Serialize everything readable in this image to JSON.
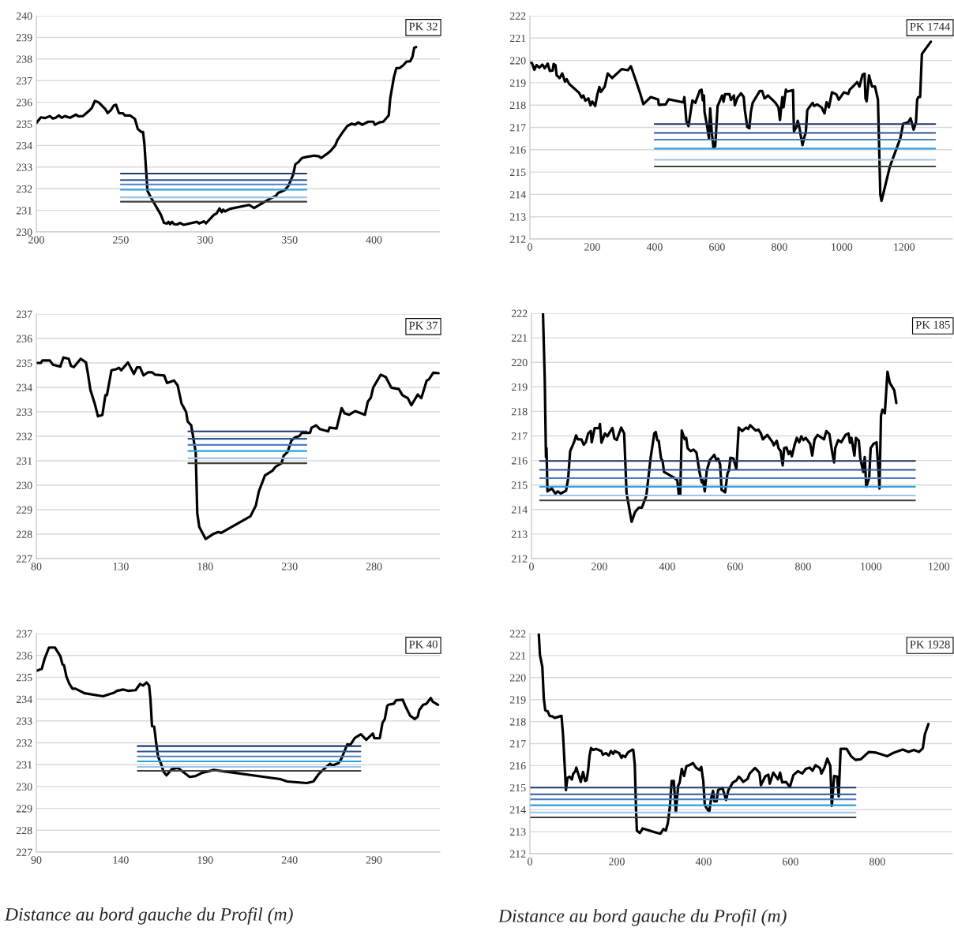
{
  "chart_data": [
    {
      "type": "line",
      "annotations": [
        "PK 32"
      ],
      "xlim": [
        200,
        439
      ],
      "xticks": [
        200,
        250,
        300,
        350,
        400
      ],
      "ylim": [
        230,
        240
      ],
      "yticks": [
        230,
        231,
        232,
        233,
        234,
        235,
        236,
        237,
        238,
        239,
        240
      ],
      "grid": "y",
      "series": [
        {
          "color": "#000000",
          "x": [
            200,
            202.7,
            205.3,
            208,
            209.8,
            211.5,
            213.3,
            215,
            216.9,
            219.9,
            223.5,
            224.9,
            227.6,
            231.2,
            232.9,
            234.7,
            237,
            240.9,
            242.2,
            244.1,
            245.9,
            247.2,
            248.9,
            251.3,
            252.5,
            255.5,
            258.4,
            260.1,
            262.3,
            263.2,
            264,
            265.8,
            267.6,
            273.8,
            275.6,
            277.4,
            278.3,
            279.2,
            280.4,
            281.5,
            283.6,
            285,
            287.2,
            295.2,
            296.4,
            299.3,
            300.5,
            305,
            306.8,
            308.5,
            309.8,
            310.7,
            311.7,
            314.8,
            326,
            329,
            338.8,
            341.9,
            343.2,
            347.3,
            349.4,
            352.1,
            353.4,
            355.2,
            357.3,
            360.1,
            364.6,
            367.3,
            368.7,
            372.6,
            374.4,
            377,
            378.3,
            381.5,
            384.2,
            386.8,
            388.6,
            390.7,
            393,
            396.6,
            399.6,
            400.5,
            403.2,
            405.5,
            408.7,
            409.6,
            411.7,
            413.2,
            415.3,
            417.4,
            419.2,
            421.5,
            422.8,
            423.8,
            424.9
          ],
          "values": [
            235.04,
            235.3,
            235.27,
            235.36,
            235.25,
            235.28,
            235.39,
            235.28,
            235.36,
            235.28,
            235.43,
            235.35,
            235.36,
            235.6,
            235.74,
            236.06,
            235.99,
            235.68,
            235.5,
            235.63,
            235.85,
            235.88,
            235.5,
            235.49,
            235.39,
            235.39,
            235.23,
            234.76,
            234.62,
            234.62,
            234.07,
            231.91,
            231.63,
            230.79,
            230.42,
            230.39,
            230.47,
            230.36,
            230.47,
            230.36,
            230.35,
            230.42,
            230.33,
            230.47,
            230.39,
            230.49,
            230.4,
            230.78,
            230.86,
            231.09,
            230.92,
            231.03,
            230.95,
            231.07,
            231.25,
            231.11,
            231.56,
            231.67,
            231.81,
            231.94,
            232.15,
            232.65,
            233.13,
            233.23,
            233.42,
            233.47,
            233.53,
            233.5,
            233.42,
            233.64,
            233.76,
            234,
            234.25,
            234.62,
            234.9,
            235.01,
            234.96,
            235.07,
            234.96,
            235.1,
            235.1,
            234.96,
            235.07,
            235.1,
            235.39,
            236.18,
            237.13,
            237.58,
            237.59,
            237.72,
            237.88,
            237.9,
            238.11,
            238.52,
            238.55
          ]
        },
        {
          "color": "#203864",
          "x": [
            250,
            360
          ],
          "values": [
            232.7,
            232.7
          ]
        },
        {
          "color": "#2f5597",
          "x": [
            250,
            360
          ],
          "values": [
            232.4,
            232.4
          ]
        },
        {
          "color": "#4f7fc0",
          "x": [
            250,
            360
          ],
          "values": [
            232.2,
            232.2
          ]
        },
        {
          "color": "#2e9ee0",
          "x": [
            250,
            360
          ],
          "values": [
            231.95,
            231.95
          ]
        },
        {
          "color": "#9dc3e6",
          "x": [
            250,
            360
          ],
          "values": [
            231.6,
            231.6
          ]
        },
        {
          "color": "#404040",
          "x": [
            250,
            360
          ],
          "values": [
            231.4,
            231.4
          ]
        }
      ]
    },
    {
      "type": "line",
      "annotations": [
        "PK 1744"
      ],
      "xlim": [
        0,
        1355
      ],
      "xticks": [
        0,
        200,
        400,
        600,
        800,
        1000,
        1200
      ],
      "ylim": [
        212,
        222
      ],
      "yticks": [
        212,
        213,
        214,
        215,
        216,
        217,
        218,
        219,
        220,
        221,
        222
      ],
      "grid": "y",
      "series": [
        {
          "color": "#000000",
          "x": [
            0,
            6.7,
            14.3,
            21,
            30.5,
            40,
            47.6,
            57,
            63.8,
            73,
            76,
            81.9,
            85.7,
            95.2,
            103.8,
            112.4,
            118,
            125.7,
            157,
            165.7,
            171.4,
            178.1,
            187.6,
            194.3,
            200,
            209.5,
            216.2,
            222.9,
            227.6,
            240,
            249.5,
            263.8,
            294.3,
            314.3,
            323.8,
            337.1,
            354.3,
            363.8,
            387.6,
            411.4,
            413.3,
            435.2,
            444.8,
            492.4,
            495.2,
            501.9,
            508.6,
            521,
            530.5,
            544.8,
            550.5,
            554.3,
            558.1,
            560,
            568.6,
            574.3,
            578.1,
            582.9,
            588.6,
            594.3,
            601.9,
            616.2,
            621,
            625.7,
            640,
            644.8,
            654.3,
            657.1,
            665.7,
            677.1,
            685.7,
            689.5,
            697.1,
            703.8,
            708.6,
            714.3,
            737.1,
            744.8,
            752.4,
            763.8,
            787.6,
            797.1,
            801.9,
            809.5,
            813.3,
            820.9,
            825.7,
            832.4,
            843.8,
            846.7,
            854.3,
            859,
            863.8,
            868.6,
            874.3,
            880,
            884.8,
            889.5,
            899,
            906.7,
            911.4,
            921,
            935.2,
            944.8,
            951.4,
            959,
            968.6,
            982.9,
            990.5,
            1006.7,
            1020.9,
            1025.7,
            1040,
            1049.5,
            1057.1,
            1066.7,
            1073.3,
            1076.2,
            1080,
            1087.6,
            1097.1,
            1106.7,
            1116.2,
            1123.8,
            1127.6,
            1154.3,
            1187.6,
            1197.1,
            1213.3,
            1220.9,
            1230.5,
            1238.1,
            1241.9,
            1245.7,
            1251.4,
            1257.1,
            1285.7
          ],
          "values": [
            219.91,
            219.88,
            219.58,
            219.79,
            219.68,
            219.81,
            219.65,
            219.86,
            219.53,
            219.55,
            219.84,
            219.79,
            219.34,
            219.21,
            219.42,
            219.05,
            219.16,
            218.95,
            218.56,
            218.34,
            218.43,
            218.2,
            218.3,
            217.99,
            218.16,
            217.96,
            218.47,
            218.81,
            218.59,
            218.83,
            219.42,
            219.21,
            219.61,
            219.56,
            219.74,
            219.21,
            218.49,
            218.04,
            218.36,
            218.25,
            218.01,
            218.03,
            218.26,
            218.12,
            218.36,
            217.27,
            217.06,
            218.21,
            218.1,
            218.65,
            218.69,
            218.21,
            218.43,
            217.7,
            217.03,
            216.5,
            217.85,
            216.83,
            216.1,
            216.16,
            217.95,
            218.43,
            218.15,
            218.49,
            218.49,
            218.23,
            218.43,
            217.99,
            218.33,
            218.53,
            218.36,
            217.76,
            217.03,
            216.96,
            217.69,
            218.1,
            218.63,
            218.63,
            218.3,
            218.43,
            218.1,
            217.9,
            217.33,
            218.36,
            217.9,
            218.69,
            218.61,
            218.63,
            218.67,
            216.83,
            217,
            217.3,
            217.03,
            216.63,
            216.21,
            216.57,
            216.77,
            217.77,
            217.96,
            218.1,
            217.96,
            218.03,
            217.9,
            217.63,
            218.13,
            217.9,
            218.57,
            218.48,
            218.24,
            218.57,
            218.5,
            218.69,
            218.89,
            219.03,
            218.83,
            219.36,
            219.41,
            218.3,
            218.17,
            219.33,
            218.83,
            218.83,
            218.24,
            213.98,
            213.71,
            215.24,
            216.5,
            217.17,
            217.23,
            217.41,
            216.9,
            217.23,
            218.24,
            218.36,
            218.36,
            220.29,
            220.84
          ]
        },
        {
          "color": "#203864",
          "x": [
            400,
            1300
          ],
          "values": [
            217.15,
            217.15
          ]
        },
        {
          "color": "#2f5597",
          "x": [
            400,
            1300
          ],
          "values": [
            216.75,
            216.75
          ]
        },
        {
          "color": "#4f7fc0",
          "x": [
            400,
            1300
          ],
          "values": [
            216.45,
            216.45
          ]
        },
        {
          "color": "#2e9ee0",
          "x": [
            400,
            1300
          ],
          "values": [
            216.05,
            216.05
          ]
        },
        {
          "color": "#9dc3e6",
          "x": [
            400,
            1300
          ],
          "values": [
            215.55,
            215.55
          ]
        },
        {
          "color": "#404040",
          "x": [
            400,
            1300
          ],
          "values": [
            215.25,
            215.25
          ]
        }
      ]
    },
    {
      "type": "line",
      "annotations": [
        "PK 37"
      ],
      "xlim": [
        80,
        319
      ],
      "xticks": [
        80,
        130,
        180,
        230,
        280
      ],
      "ylim": [
        227,
        237
      ],
      "yticks": [
        227,
        228,
        229,
        230,
        231,
        232,
        233,
        234,
        235,
        236,
        237
      ],
      "grid": "y",
      "series": [
        {
          "color": "#000000",
          "x": [
            80,
            82.7,
            83.6,
            88,
            89.8,
            94.2,
            96,
            99.2,
            100.5,
            102.2,
            106.3,
            109.4,
            110.6,
            112,
            114.7,
            116.5,
            119.1,
            120.9,
            121.8,
            124.5,
            127.2,
            128.9,
            130.3,
            134.3,
            137.8,
            139.6,
            141.4,
            143.5,
            146.2,
            148.5,
            150.3,
            155.7,
            157.4,
            161.6,
            163.7,
            166,
            168.7,
            169.6,
            171.7,
            173.1,
            174.4,
            175.3,
            176.5,
            180.3,
            185.1,
            187.8,
            189.5,
            206.8,
            210,
            211.8,
            215.4,
            219.8,
            221.6,
            225.2,
            226.5,
            228.8,
            231.1,
            233.2,
            235.9,
            237.2,
            242.1,
            243,
            245.7,
            247.8,
            252.8,
            253.7,
            257.8,
            260.8,
            262.6,
            265.3,
            268.8,
            274.6,
            276.3,
            278.1,
            279.5,
            284,
            287,
            290.2,
            294.7,
            296.8,
            300,
            302.1,
            305.9,
            308,
            311.2,
            312.5,
            315.1,
            318.2
          ],
          "values": [
            235,
            235,
            235.1,
            235.1,
            234.93,
            234.85,
            235.22,
            235.17,
            234.88,
            234.83,
            235.17,
            235.02,
            234.55,
            233.9,
            233.31,
            232.82,
            232.87,
            233.68,
            233.68,
            234.7,
            234.74,
            234.8,
            234.7,
            235.02,
            234.55,
            234.82,
            234.82,
            234.49,
            234.62,
            234.62,
            234.52,
            234.49,
            234.18,
            234.28,
            234.08,
            233.34,
            233,
            232.61,
            232.45,
            231.89,
            231.33,
            228.86,
            228.3,
            227.8,
            228.02,
            228.09,
            228.05,
            228.73,
            229.17,
            229.75,
            230.4,
            230.59,
            230.75,
            230.9,
            231.21,
            231.36,
            231.83,
            231.95,
            232.02,
            232.14,
            232.14,
            232.35,
            232.45,
            232.3,
            232.2,
            232.36,
            232.32,
            233.15,
            232.94,
            232.88,
            233.03,
            232.88,
            233.41,
            233.58,
            233.99,
            234.52,
            234.42,
            233.99,
            233.93,
            233.68,
            233.56,
            233.27,
            233.71,
            233.56,
            234.28,
            234.33,
            234.6,
            234.58
          ]
        },
        {
          "color": "#203864",
          "x": [
            170,
            240
          ],
          "values": [
            232.2,
            232.2
          ]
        },
        {
          "color": "#2f5597",
          "x": [
            170,
            240
          ],
          "values": [
            231.9,
            231.9
          ]
        },
        {
          "color": "#4f7fc0",
          "x": [
            170,
            240
          ],
          "values": [
            231.65,
            231.65
          ]
        },
        {
          "color": "#2e9ee0",
          "x": [
            170,
            240
          ],
          "values": [
            231.4,
            231.4
          ]
        },
        {
          "color": "#9dc3e6",
          "x": [
            170,
            240
          ],
          "values": [
            231.1,
            231.1
          ]
        },
        {
          "color": "#404040",
          "x": [
            170,
            240
          ],
          "values": [
            230.9,
            230.9
          ]
        }
      ]
    },
    {
      "type": "line",
      "annotations": [
        "PK 185"
      ],
      "xlim": [
        0,
        1240
      ],
      "xticks": [
        0,
        200,
        400,
        600,
        800,
        1000,
        1200
      ],
      "ylim": [
        212,
        222
      ],
      "yticks": [
        212,
        213,
        214,
        215,
        216,
        217,
        218,
        219,
        220,
        221,
        222
      ],
      "grid": "y",
      "series": [
        {
          "color": "#000000",
          "x": [
            33.9,
            39.1,
            42.6,
            44.3,
            47,
            60,
            70.4,
            77.4,
            86.1,
            101.7,
            107.8,
            113.9,
            125.2,
            131.3,
            136.5,
            147,
            153.9,
            160,
            167,
            174.8,
            177.4,
            186.1,
            199.1,
            201.7,
            206.1,
            216.5,
            223.5,
            229.6,
            238.3,
            244.3,
            251.3,
            264.3,
            273,
            280,
            294.8,
            305.2,
            316.5,
            325.2,
            338.3,
            351.3,
            361.7,
            366.1,
            370.4,
            374.8,
            381.7,
            386.1,
            390.4,
            420.9,
            429.6,
            433.9,
            438.3,
            442.6,
            451.3,
            455.7,
            460,
            468.7,
            477.4,
            486.1,
            494.8,
            501.7,
            505.2,
            510.4,
            516.5,
            525.2,
            538.3,
            545.2,
            549.6,
            555.7,
            560,
            570.4,
            577.4,
            581.7,
            586.1,
            594.8,
            603.5,
            610.4,
            620.9,
            632.2,
            638.3,
            644.3,
            660,
            668.7,
            675.7,
            681.7,
            694.8,
            710.4,
            713.9,
            722.6,
            727.8,
            733.9,
            740,
            744.3,
            751.3,
            757.4,
            762.6,
            767,
            774.8,
            781.7,
            788.7,
            794.8,
            800.9,
            807.8,
            820.9,
            827,
            834,
            842.6,
            861.7,
            868.7,
            877.4,
            886.1,
            891.3,
            894.8,
            903.5,
            912.2,
            925.2,
            933.9,
            938.3,
            942.6,
            951.3,
            955.7,
            964.3,
            968.7,
            977.4,
            981.7,
            986.1,
            994.8,
            999.1,
            1007.8,
            1016.5,
            1023.5,
            1025.2,
            1029.6,
            1033.9,
            1040.9,
            1048.7,
            1055.7,
            1068.7,
            1074.8
          ],
          "values": [
            222,
            219.28,
            216.14,
            216.5,
            214.74,
            214.86,
            214.65,
            214.74,
            214.65,
            214.77,
            215.23,
            216.38,
            216.74,
            217.02,
            216.86,
            216.86,
            216.64,
            216.74,
            217.1,
            217.2,
            216.74,
            217.32,
            217.32,
            217.49,
            216.72,
            217.1,
            216.98,
            217.13,
            217.32,
            216.89,
            216.84,
            217.34,
            217.1,
            214.68,
            213.5,
            213.9,
            214.08,
            214.08,
            214.56,
            216.14,
            217.1,
            217.16,
            216.83,
            216.8,
            216.08,
            215.99,
            215.53,
            215.29,
            215.19,
            214.59,
            214.62,
            217.22,
            216.86,
            216.92,
            216.5,
            216.38,
            216.44,
            216.32,
            215.53,
            215.11,
            215.19,
            214.74,
            215.59,
            216.01,
            216.23,
            215.99,
            216.08,
            215.84,
            214.8,
            214.7,
            215.47,
            215.59,
            216.11,
            216.08,
            215.65,
            217.34,
            217.2,
            217.34,
            217.28,
            217.44,
            217.22,
            217.25,
            217.1,
            216.86,
            217.04,
            216.74,
            216.62,
            216.8,
            216.5,
            216.38,
            215.8,
            216.5,
            216.53,
            216.26,
            216.38,
            216.17,
            216.62,
            216.92,
            216.74,
            216.98,
            216.83,
            216.92,
            216.68,
            216.2,
            216.86,
            217.04,
            216.86,
            217.2,
            217.08,
            216.32,
            215.92,
            216.5,
            216.83,
            216.74,
            217.04,
            217.1,
            216.72,
            216.92,
            216.2,
            216.92,
            216.8,
            216.08,
            215.53,
            216.14,
            214.93,
            215.29,
            216.5,
            216.68,
            216.74,
            215.29,
            214.86,
            217.82,
            218.07,
            217.92,
            219.62,
            219.16,
            218.86,
            218.34
          ]
        },
        {
          "color": "#203864",
          "x": [
            25,
            1130
          ],
          "values": [
            215.98,
            215.98
          ]
        },
        {
          "color": "#2f5597",
          "x": [
            25,
            1130
          ],
          "values": [
            215.62,
            215.62
          ]
        },
        {
          "color": "#4f7fc0",
          "x": [
            25,
            1130
          ],
          "values": [
            215.28,
            215.28
          ]
        },
        {
          "color": "#2e9ee0",
          "x": [
            25,
            1130
          ],
          "values": [
            214.93,
            214.93
          ]
        },
        {
          "color": "#9dc3e6",
          "x": [
            25,
            1130
          ],
          "values": [
            214.57,
            214.57
          ]
        },
        {
          "color": "#404040",
          "x": [
            25,
            1130
          ],
          "values": [
            214.37,
            214.37
          ]
        }
      ]
    },
    {
      "type": "line",
      "annotations": [
        "PK 40"
      ],
      "xlabel": "Distance au bord gauche du Profil (m)",
      "xlim": [
        90,
        329
      ],
      "xticks": [
        90,
        140,
        190,
        240,
        290
      ],
      "ylim": [
        227,
        237
      ],
      "yticks": [
        227,
        228,
        229,
        230,
        231,
        232,
        233,
        234,
        235,
        236,
        237
      ],
      "grid": "y",
      "series": [
        {
          "color": "#000000",
          "x": [
            90,
            93.2,
            95,
            97.5,
            101,
            104.2,
            105.5,
            106.4,
            107.8,
            109.6,
            111.4,
            113.2,
            118.5,
            129.5,
            136.3,
            137.7,
            141.6,
            144.3,
            148.8,
            151.4,
            153.2,
            155.3,
            156.8,
            157.6,
            158.5,
            159.8,
            160.9,
            162.1,
            163.9,
            165.3,
            167.1,
            170.1,
            173.7,
            180.8,
            184.3,
            187.9,
            195,
            234.5,
            238.6,
            250.1,
            254.1,
            257.3,
            261.2,
            264,
            265.3,
            268.9,
            270.6,
            274.2,
            276,
            278.6,
            282.2,
            285.4,
            289.3,
            290.2,
            293.4,
            295,
            296.4,
            297.8,
            298.5,
            301.7,
            303.1,
            307,
            308.8,
            311.5,
            314.2,
            315.9,
            316.8,
            319.1,
            320.9,
            323.6,
            324.8,
            327.9
          ],
          "values": [
            235.29,
            235.38,
            235.87,
            236.36,
            236.36,
            235.97,
            235.59,
            235.55,
            235.04,
            234.69,
            234.48,
            234.48,
            234.27,
            234.13,
            234.3,
            234.38,
            234.44,
            234.38,
            234.41,
            234.69,
            234.62,
            234.76,
            234.62,
            233.99,
            232.77,
            232.74,
            232.04,
            231.37,
            231.04,
            230.68,
            230.51,
            230.79,
            230.86,
            230.44,
            230.48,
            230.62,
            230.76,
            230.34,
            230.23,
            230.16,
            230.23,
            230.58,
            230.86,
            231.04,
            230.96,
            231.07,
            231.26,
            231.93,
            231.91,
            232.22,
            232.39,
            232.14,
            232.43,
            232.21,
            232.21,
            232.91,
            233.09,
            233.69,
            233.74,
            233.79,
            233.95,
            233.97,
            233.64,
            233.23,
            233.09,
            233.2,
            233.5,
            233.74,
            233.78,
            234.05,
            233.88,
            233.74
          ]
        },
        {
          "color": "#203864",
          "x": [
            150,
            282
          ],
          "values": [
            231.85,
            231.85
          ]
        },
        {
          "color": "#2f5597",
          "x": [
            150,
            282
          ],
          "values": [
            231.6,
            231.6
          ]
        },
        {
          "color": "#4f7fc0",
          "x": [
            150,
            282
          ],
          "values": [
            231.38,
            231.38
          ]
        },
        {
          "color": "#2e9ee0",
          "x": [
            150,
            282
          ],
          "values": [
            231.15,
            231.15
          ]
        },
        {
          "color": "#9dc3e6",
          "x": [
            150,
            282
          ],
          "values": [
            230.9,
            230.9
          ]
        },
        {
          "color": "#404040",
          "x": [
            150,
            282
          ],
          "values": [
            230.72,
            230.72
          ]
        }
      ]
    },
    {
      "type": "line",
      "annotations": [
        "PK 1928"
      ],
      "xlabel": "Distance au bord gauche du Profil (m)",
      "xlim": [
        0,
        973
      ],
      "xticks": [
        0,
        200,
        400,
        600,
        800
      ],
      "ylim": [
        212,
        222
      ],
      "yticks": [
        212,
        213,
        214,
        215,
        216,
        217,
        218,
        219,
        220,
        221,
        222
      ],
      "grid": "y",
      "series": [
        {
          "color": "#000000",
          "x": [
            20.4,
            23.1,
            28.6,
            32,
            35.4,
            40.8,
            45.6,
            52.4,
            57.1,
            72.8,
            76.2,
            79.6,
            83,
            86.4,
            91.2,
            96.6,
            100,
            104.8,
            106.8,
            111.6,
            117.1,
            122.4,
            127.2,
            130.6,
            134,
            137.4,
            140.8,
            145.6,
            152.4,
            164.6,
            168,
            174.8,
            181.6,
            186.4,
            191.8,
            195.2,
            205.4,
            210.9,
            213.6,
            219,
            225.9,
            236.1,
            238.1,
            241.5,
            244.2,
            246.3,
            253.1,
            259.9,
            287.1,
            293.9,
            300.7,
            307.5,
            312.9,
            317.7,
            322.4,
            326.5,
            331.3,
            336.1,
            341.5,
            344.9,
            349.7,
            355.1,
            360.5,
            367.3,
            375.5,
            382.3,
            390.5,
            394.6,
            399.3,
            402.7,
            412.9,
            417.7,
            421.8,
            424.5,
            430,
            433.3,
            443.5,
            451.7,
            457.1,
            467.3,
            476.2,
            480.9,
            484.4,
            491.2,
            501.4,
            506.1,
            518.4,
            528.6,
            532,
            542.2,
            549,
            552.4,
            560.5,
            571.4,
            576.2,
            580.9,
            589.8,
            598.6,
            606.8,
            617,
            627.2,
            635.4,
            644.2,
            651,
            657.8,
            668,
            671.4,
            678.2,
            685,
            691.8,
            695.2,
            700.7,
            707.5,
            711,
            715.6,
            729.3,
            739.5,
            749.7,
            761.9,
            780.3,
            797.3,
            823.1,
            838.1,
            858.5,
            872.1,
            884.4,
            895.9,
            904.8,
            909.5,
            917.7
          ],
          "values": [
            222,
            221.03,
            220.49,
            219.05,
            218.51,
            218.47,
            218.26,
            218.23,
            218.17,
            218.26,
            217.42,
            216.19,
            214.89,
            215.44,
            215.5,
            215.37,
            215.64,
            215.75,
            215.91,
            215.61,
            215.26,
            215.71,
            215.3,
            215.34,
            215.77,
            216.46,
            216.8,
            216.71,
            216.76,
            216.66,
            216.49,
            216.57,
            216.46,
            216.66,
            216.53,
            216.66,
            216.57,
            216.35,
            216.46,
            216.39,
            216.6,
            216.73,
            216.71,
            216.05,
            214.14,
            213.05,
            212.94,
            213.15,
            212.98,
            212.94,
            212.91,
            213.12,
            213.05,
            213.39,
            214.14,
            215.3,
            215.3,
            213.89,
            215.09,
            215.23,
            215.85,
            215.53,
            215.98,
            216.02,
            216.12,
            215.91,
            215.8,
            215.94,
            215.3,
            214.21,
            213.89,
            214.55,
            214.85,
            214.38,
            214.38,
            214.89,
            214.99,
            214.44,
            214.89,
            215.23,
            215.34,
            215.5,
            215.44,
            215.26,
            215.4,
            215.64,
            215.89,
            215.68,
            215.11,
            215.52,
            215.59,
            215.18,
            215.68,
            215.38,
            215.68,
            215.24,
            215.26,
            215.03,
            215.57,
            215.75,
            215.64,
            215.85,
            215.91,
            215.77,
            216.02,
            215.89,
            215.64,
            215.91,
            216.32,
            215.98,
            214.17,
            215.53,
            215.5,
            214.6,
            216.76,
            216.76,
            216.43,
            216.26,
            216.29,
            216.62,
            216.59,
            216.43,
            216.59,
            216.73,
            216.62,
            216.71,
            216.62,
            216.79,
            217.42,
            217.89
          ]
        },
        {
          "color": "#203864",
          "x": [
            0,
            750
          ],
          "values": [
            215.0,
            215.0
          ]
        },
        {
          "color": "#2f5597",
          "x": [
            0,
            750
          ],
          "values": [
            214.7,
            214.7
          ]
        },
        {
          "color": "#4f7fc0",
          "x": [
            0,
            750
          ],
          "values": [
            214.47,
            214.47
          ]
        },
        {
          "color": "#2e9ee0",
          "x": [
            0,
            750
          ],
          "values": [
            214.2,
            214.2
          ]
        },
        {
          "color": "#9dc3e6",
          "x": [
            0,
            750
          ],
          "values": [
            213.87,
            213.87
          ]
        },
        {
          "color": "#404040",
          "x": [
            0,
            750
          ],
          "values": [
            213.65,
            213.65
          ]
        }
      ]
    }
  ]
}
